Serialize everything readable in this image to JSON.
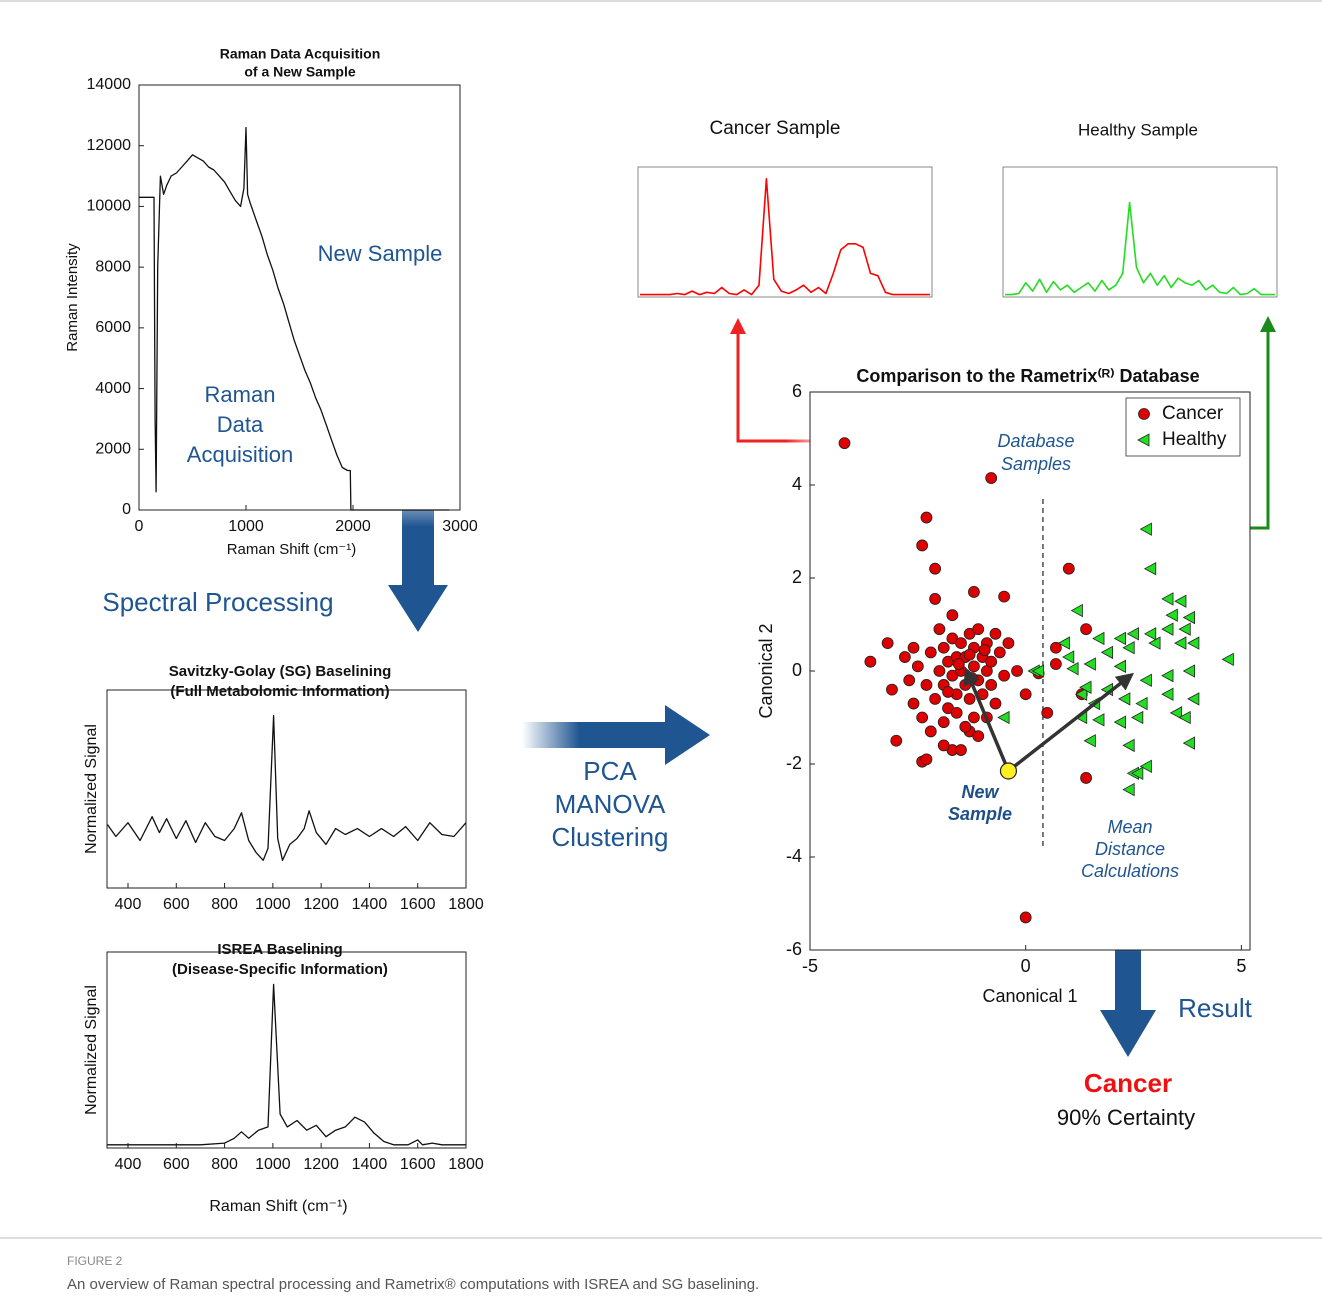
{
  "chart_data": [
    {
      "type": "line",
      "title": [
        "Raman Data Acquisition",
        "of a New Sample"
      ],
      "x_label": "Raman Shift (cm⁻¹)",
      "y_label": "Raman Intensity",
      "x": [
        0,
        140,
        150,
        160,
        175,
        200,
        230,
        260,
        300,
        350,
        400,
        450,
        500,
        550,
        600,
        650,
        700,
        750,
        800,
        850,
        900,
        950,
        980,
        1000,
        1015,
        1040,
        1100,
        1150,
        1200,
        1250,
        1300,
        1350,
        1400,
        1450,
        1500,
        1550,
        1600,
        1650,
        1700,
        1750,
        1800,
        1850,
        1900,
        1950,
        1960,
        1975,
        1980,
        2900
      ],
      "values": [
        10300,
        10300,
        3000,
        600,
        8000,
        11000,
        10400,
        10700,
        11000,
        11100,
        11300,
        11500,
        11700,
        11600,
        11500,
        11300,
        11200,
        11000,
        10800,
        10500,
        10200,
        10000,
        10600,
        12600,
        10400,
        10100,
        9500,
        9000,
        8400,
        7900,
        7300,
        6800,
        6200,
        5600,
        5100,
        4600,
        4200,
        3700,
        3300,
        2800,
        2300,
        1800,
        1400,
        1300,
        1300,
        1300,
        0,
        0
      ],
      "color": "#111111",
      "xlim": [
        0,
        3000
      ],
      "xticks": [
        0,
        1000,
        2000,
        3000
      ],
      "ylim": [
        0,
        14000
      ],
      "yticks": [
        0,
        2000,
        4000,
        6000,
        8000,
        10000,
        12000,
        14000
      ],
      "annotations": [
        [
          "New Sample"
        ],
        [
          "Raman",
          "Data",
          "Acquisition"
        ]
      ]
    },
    {
      "type": "line",
      "title": [
        "Savitzky-Golay (SG) Baselining",
        "(Full Metabolomic Information)"
      ],
      "y_label": "Normalized Signal",
      "x": [
        315,
        350,
        400,
        450,
        500,
        530,
        560,
        600,
        640,
        680,
        720,
        760,
        800,
        840,
        870,
        900,
        930,
        960,
        980,
        1003,
        1020,
        1040,
        1070,
        1100,
        1130,
        1150,
        1180,
        1220,
        1260,
        1300,
        1350,
        1400,
        1450,
        1500,
        1550,
        1600,
        1650,
        1700,
        1750,
        1800
      ],
      "values": [
        0.32,
        0.26,
        0.33,
        0.24,
        0.36,
        0.28,
        0.35,
        0.25,
        0.34,
        0.23,
        0.33,
        0.26,
        0.24,
        0.3,
        0.38,
        0.24,
        0.18,
        0.14,
        0.2,
        0.87,
        0.25,
        0.14,
        0.22,
        0.25,
        0.3,
        0.39,
        0.28,
        0.22,
        0.3,
        0.27,
        0.3,
        0.26,
        0.3,
        0.26,
        0.31,
        0.24,
        0.33,
        0.27,
        0.26,
        0.33
      ],
      "color": "#111111",
      "xlim": [
        313,
        1800
      ],
      "xticks": [
        400,
        600,
        800,
        1000,
        1200,
        1400,
        1600,
        1800
      ],
      "ylim": [
        0,
        1
      ]
    },
    {
      "type": "line",
      "title": [
        "ISREA Baselining",
        "(Disease-Specific Information)"
      ],
      "x_label": "Raman Shift (cm⁻¹)",
      "y_label": "Normalized Signal",
      "x": [
        315,
        500,
        700,
        800,
        840,
        870,
        900,
        940,
        980,
        1003,
        1030,
        1060,
        1100,
        1140,
        1180,
        1220,
        1260,
        1300,
        1340,
        1380,
        1420,
        1460,
        1500,
        1560,
        1600,
        1620,
        1660,
        1700,
        1800
      ],
      "values": [
        0.01,
        0.01,
        0.01,
        0.02,
        0.05,
        0.09,
        0.05,
        0.1,
        0.12,
        1.0,
        0.2,
        0.12,
        0.16,
        0.1,
        0.13,
        0.06,
        0.1,
        0.12,
        0.18,
        0.15,
        0.08,
        0.03,
        0.01,
        0.01,
        0.04,
        0.01,
        0.02,
        0.01,
        0.01
      ],
      "color": "#111111",
      "xlim": [
        313,
        1800
      ],
      "xticks": [
        400,
        600,
        800,
        1000,
        1200,
        1400,
        1600,
        1800
      ],
      "ylim": [
        -0.01,
        1.2
      ]
    },
    {
      "type": "line",
      "title": [
        "Cancer Sample"
      ],
      "color": "#ff0000",
      "ylim": [
        0,
        1.1
      ],
      "values": [
        0.02,
        0.02,
        0.02,
        0.02,
        0.02,
        0.03,
        0.02,
        0.05,
        0.02,
        0.04,
        0.03,
        0.08,
        0.03,
        0.02,
        0.06,
        0.02,
        0.1,
        1.0,
        0.15,
        0.05,
        0.03,
        0.06,
        0.1,
        0.04,
        0.08,
        0.03,
        0.2,
        0.4,
        0.45,
        0.45,
        0.42,
        0.2,
        0.18,
        0.04,
        0.02,
        0.02,
        0.02,
        0.02,
        0.02,
        0.02
      ]
    },
    {
      "type": "line",
      "title": [
        "Healthy Sample"
      ],
      "color": "#22dd22",
      "ylim": [
        0,
        1.1
      ],
      "values": [
        0.02,
        0.02,
        0.03,
        0.12,
        0.05,
        0.15,
        0.04,
        0.13,
        0.06,
        0.1,
        0.04,
        0.08,
        0.12,
        0.05,
        0.14,
        0.06,
        0.1,
        0.2,
        0.8,
        0.25,
        0.12,
        0.2,
        0.1,
        0.18,
        0.08,
        0.16,
        0.12,
        0.1,
        0.14,
        0.06,
        0.1,
        0.04,
        0.03,
        0.08,
        0.02,
        0.03,
        0.07,
        0.02,
        0.02,
        0.02
      ]
    },
    {
      "type": "scatter",
      "title": [
        "Comparison to the Rametrix⁽ᴿ⁾ Database"
      ],
      "x_label": "Canonical 1",
      "y_label": "Canonical 2",
      "xlim": [
        -5,
        5.2
      ],
      "xticks": [
        -5,
        0,
        5
      ],
      "ylim": [
        -6,
        6
      ],
      "yticks": [
        -6,
        -4,
        -2,
        0,
        2,
        4,
        6
      ],
      "legend": "upper right",
      "boundary_x": 0.4,
      "series": [
        {
          "name": "Cancer",
          "color": "#dd0000",
          "marker": "circle",
          "x": [
            -4.2,
            -0.8,
            -2.3,
            -2.4,
            -2.1,
            -2.1,
            -1.7,
            -1.2,
            -0.5,
            1.0,
            -3.6,
            -3.2,
            -3.1,
            -3.0,
            -2.4,
            -2.3,
            0,
            1.4,
            1.3,
            1.4,
            0.7,
            0.5,
            0.0,
            -0.2,
            0.3,
            0.7,
            -1.7,
            -1.5,
            -1.3,
            -1.2,
            -1.9,
            -2.6,
            -2.5,
            -2.3,
            -2.2,
            -2.1,
            -2.0,
            -1.9,
            -1.9,
            -1.8,
            -1.8,
            -1.7,
            -1.7,
            -1.6,
            -1.6,
            -1.5,
            -1.5,
            -1.4,
            -1.4,
            -1.3,
            -1.3,
            -1.2,
            -1.2,
            -1.1,
            -1.1,
            -1.0,
            -1.0,
            -0.9,
            -0.9,
            -0.8,
            -0.8,
            -0.7,
            -0.7,
            -0.6,
            -0.5,
            -0.4,
            -2.7,
            -2.8,
            -2.4,
            -2.2,
            -1.9,
            -1.6,
            -1.4,
            -1.1,
            -0.9,
            -2.6,
            -2.0,
            -1.3,
            -1.8,
            -1.55,
            -1.25,
            -0.95
          ],
          "values": [
            4.9,
            4.15,
            3.3,
            2.7,
            2.2,
            1.55,
            1.2,
            1.7,
            1.6,
            2.2,
            0.2,
            0.6,
            -0.4,
            -1.5,
            -1.95,
            -1.9,
            -5.3,
            -2.3,
            -0.5,
            0.9,
            0.5,
            -0.9,
            -0.5,
            0.0,
            -0.05,
            0.15,
            -1.7,
            -1.7,
            -1.3,
            -1.0,
            -1.1,
            -0.7,
            0.1,
            -0.3,
            0.4,
            -0.6,
            0.0,
            0.5,
            -0.3,
            0.2,
            -0.8,
            0.7,
            -0.1,
            0.3,
            -0.5,
            0.0,
            0.6,
            -0.3,
            0.3,
            0.8,
            -0.6,
            0.1,
            0.5,
            -0.2,
            0.9,
            0.3,
            -0.5,
            0.0,
            0.6,
            -0.3,
            0.2,
            0.8,
            -0.7,
            0.4,
            -0.1,
            0.6,
            -0.2,
            0.3,
            -1.0,
            -1.3,
            -1.6,
            -0.9,
            -1.2,
            -1.4,
            -1.0,
            0.5,
            0.9,
            0.35,
            -0.45,
            0.15,
            -0.15,
            0.45
          ]
        },
        {
          "name": "Healthy",
          "color": "#22dd22",
          "marker": "triangle-left",
          "x": [
            2.8,
            2.9,
            3.3,
            3.6,
            3.4,
            3.8,
            3.7,
            3.3,
            2.9,
            2.5,
            2.2,
            1.7,
            1.9,
            2.4,
            3.0,
            3.6,
            3.9,
            1.2,
            0.9,
            1.0,
            0.2,
            1.1,
            1.5,
            2.2,
            2.8,
            3.3,
            3.8,
            4.7,
            1.9,
            1.3,
            1.6,
            2.3,
            2.7,
            3.3,
            3.5,
            3.7,
            3.9,
            3.8,
            2.6,
            2.2,
            1.7,
            1.3,
            -0.5,
            1.5,
            2.4,
            2.8,
            2.5,
            2.6,
            2.4,
            0.3,
            1.4
          ],
          "values": [
            3.05,
            2.2,
            1.55,
            1.5,
            1.2,
            1.15,
            0.9,
            0.9,
            0.8,
            0.8,
            0.7,
            0.7,
            0.4,
            0.5,
            0.6,
            0.6,
            0.6,
            1.3,
            0.6,
            0.3,
            0.0,
            0.05,
            0.15,
            0.1,
            -0.2,
            -0.1,
            0.0,
            0.25,
            -0.4,
            -0.5,
            -0.7,
            -0.6,
            -0.7,
            -0.5,
            -0.9,
            -1.0,
            -0.6,
            -1.55,
            -1.0,
            -1.1,
            -1.05,
            -1.0,
            -1.0,
            -1.5,
            -1.6,
            -2.05,
            -2.2,
            -2.2,
            -2.55,
            0.0,
            -0.35
          ]
        }
      ],
      "new_sample": {
        "x": -0.4,
        "y": -2.15
      },
      "annotations": [
        [
          "Database",
          "Samples"
        ],
        [
          "New",
          "Sample"
        ],
        [
          "Mean",
          "Distance",
          "Calculations"
        ]
      ]
    }
  ],
  "flow": {
    "spectral_processing": "Spectral Processing",
    "methods": [
      "PCA",
      "MANOVA",
      "Clustering"
    ],
    "result": "Result",
    "outcome": "Cancer",
    "certainty": "90% Certainty"
  },
  "caption": {
    "label": "FIGURE 2",
    "text": "An overview of Raman spectral processing and Rametrix® computations with ISREA and SG baselining."
  }
}
